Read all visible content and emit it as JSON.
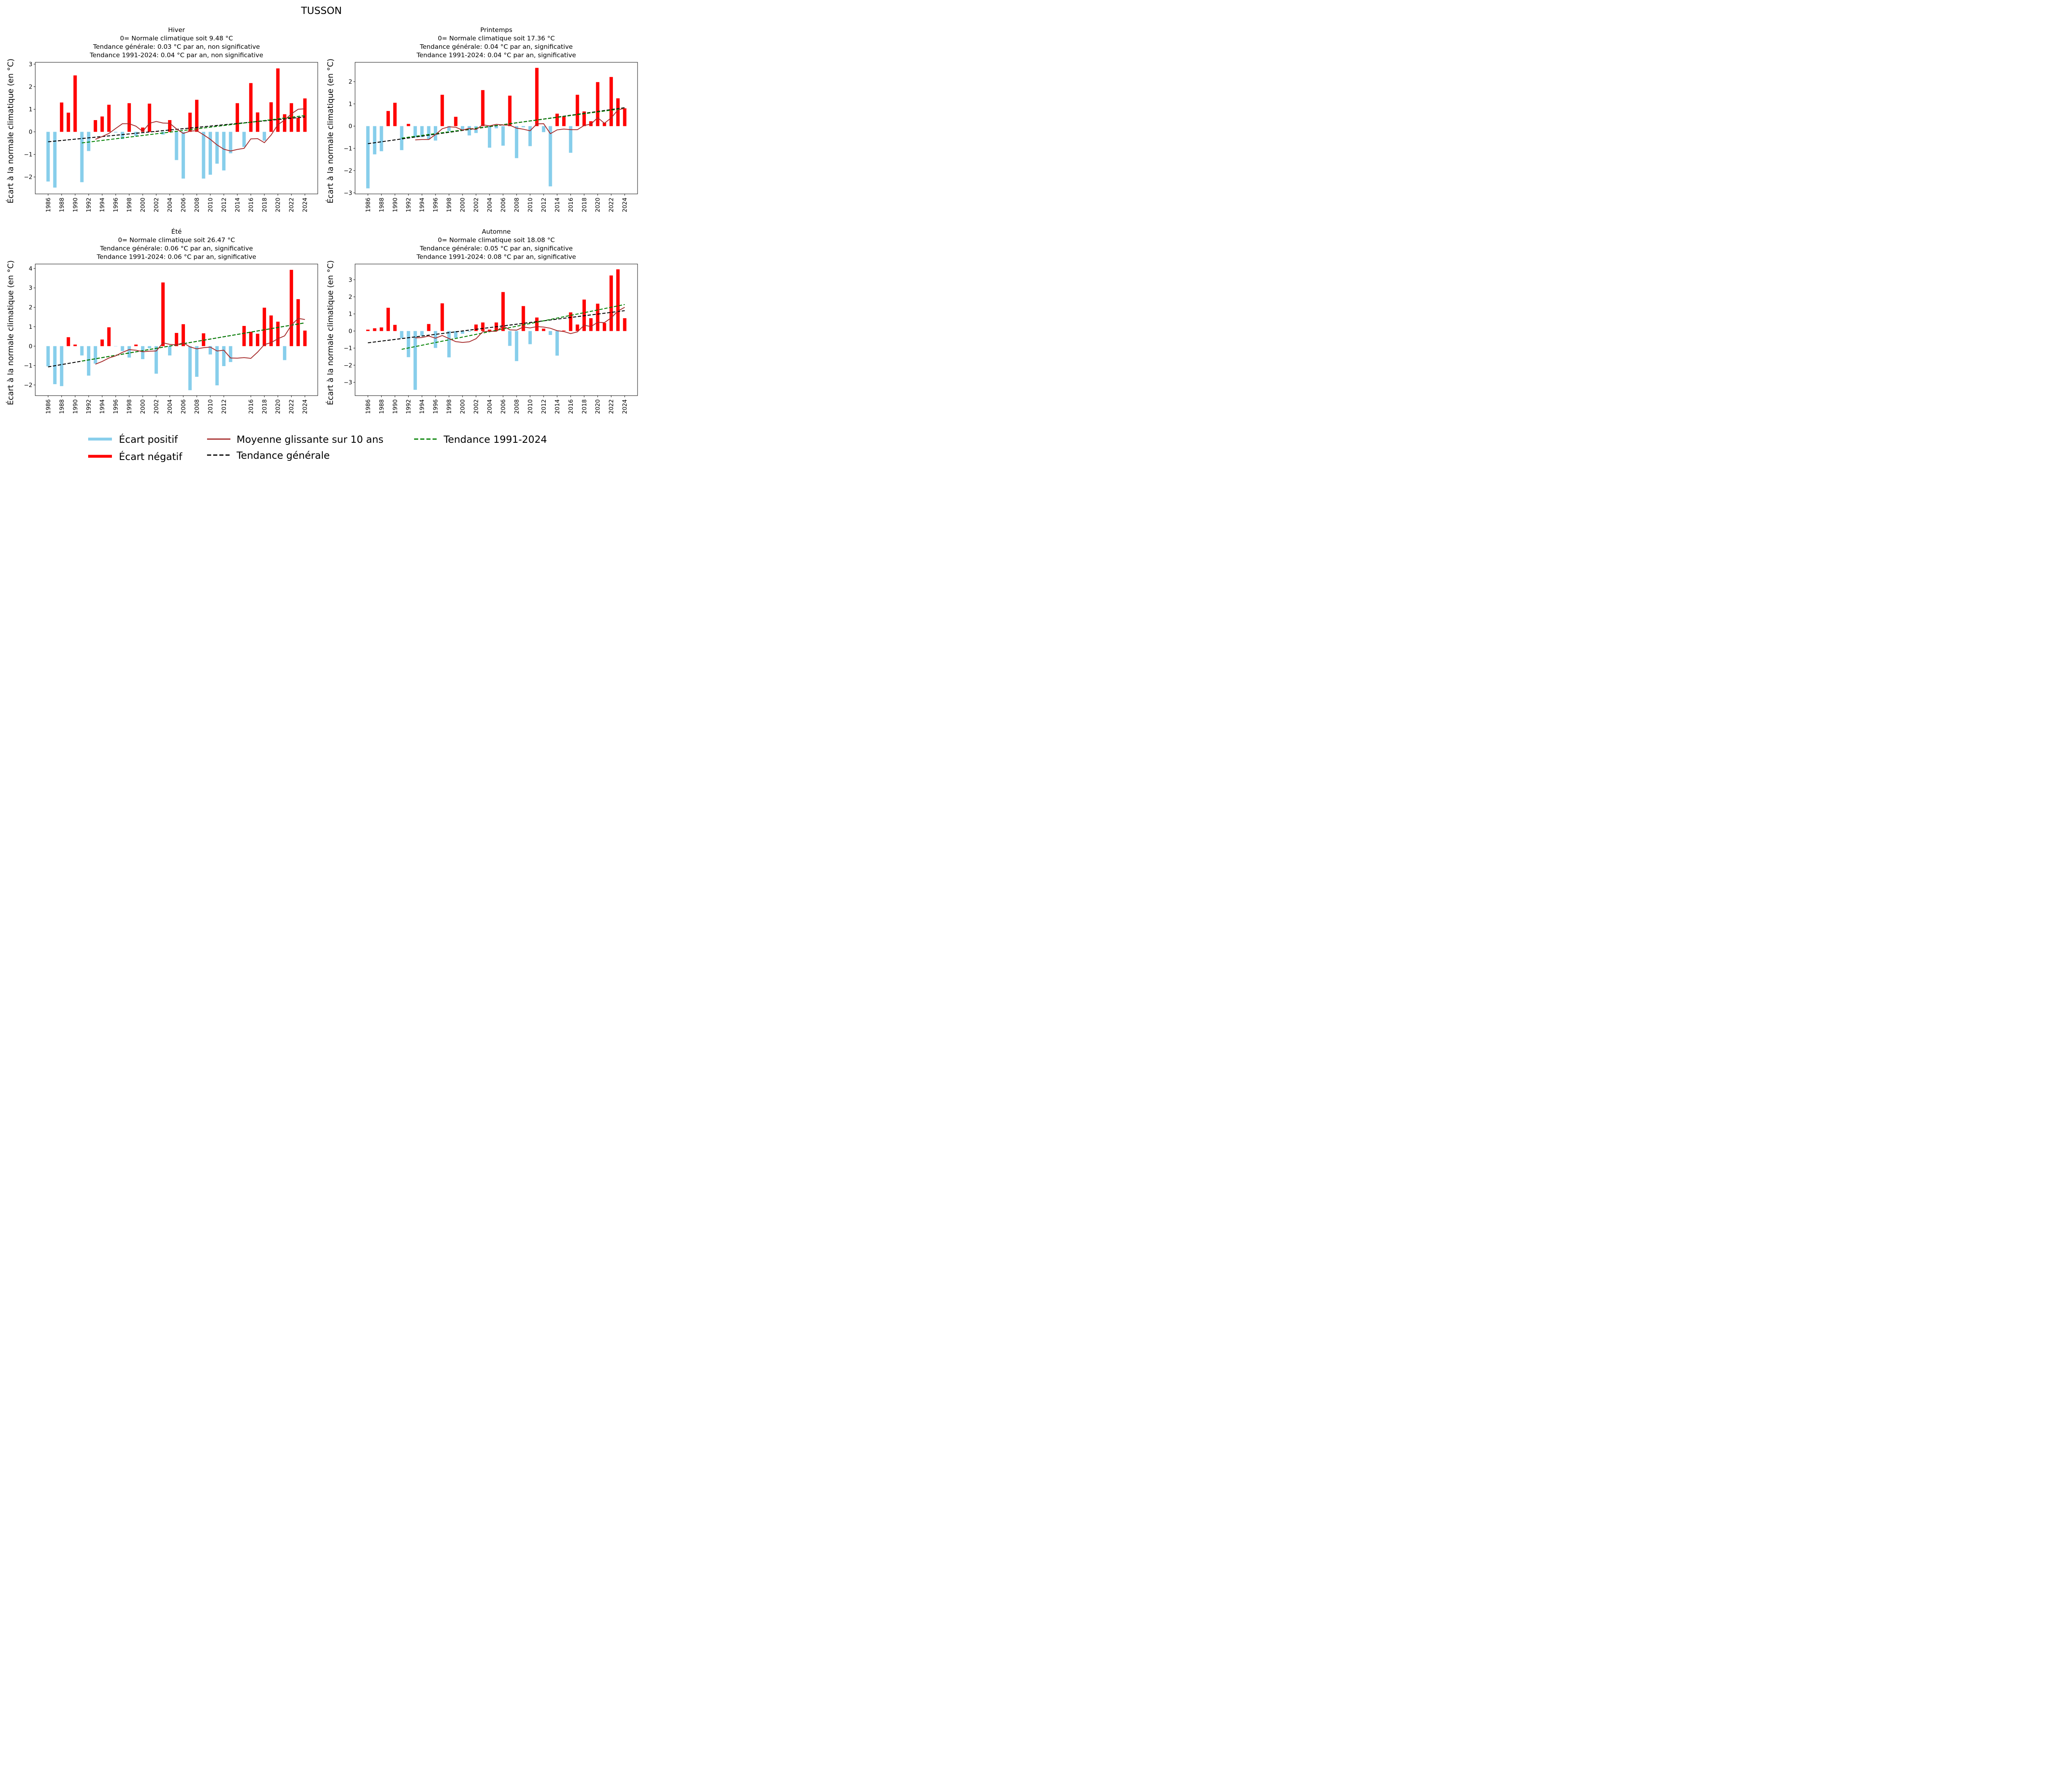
{
  "figure": {
    "title": "TUSSON"
  },
  "legend": {
    "items": [
      {
        "label": "Écart positif",
        "color": "#87ceeb",
        "style": "bar"
      },
      {
        "label": "Écart négatif",
        "color": "#ff0000",
        "style": "bar"
      },
      {
        "label": "Moyenne glissante sur 10 ans",
        "color": "#a52a2a",
        "style": "solid"
      },
      {
        "label": "Tendance générale",
        "color": "#000000",
        "style": "dashed"
      },
      {
        "label": "Tendance 1991-2024",
        "color": "#008000",
        "style": "dashed"
      }
    ]
  },
  "chart_data": [
    {
      "type": "bar",
      "panel": "top-left",
      "title_lines": [
        "Hiver",
        "0= Normale climatique soit 9.48 °C",
        "Tendance générale: 0.03  °C par an, non significative",
        "Tendance 1991-2024: 0.04 °C par an, non significative"
      ],
      "ylabel": "Écart à la normale climatique (en °C)",
      "ylim": [
        -2.75,
        3.08
      ],
      "yticks": [
        -2,
        -1,
        0,
        1,
        2,
        3
      ],
      "xticks": [
        1986,
        1988,
        1990,
        1992,
        1994,
        1996,
        1998,
        2000,
        2002,
        2004,
        2006,
        2008,
        2010,
        2012,
        2014,
        2016,
        2018,
        2020,
        2022,
        2024
      ],
      "years": [
        1986,
        1987,
        1988,
        1989,
        1990,
        1991,
        1992,
        1993,
        1994,
        1995,
        1996,
        1997,
        1998,
        1999,
        2000,
        2001,
        2002,
        2003,
        2004,
        2005,
        2006,
        2007,
        2008,
        2009,
        2010,
        2011,
        2012,
        2013,
        2014,
        2015,
        2016,
        2017,
        2018,
        2019,
        2020,
        2021,
        2022,
        2023,
        2024
      ],
      "values": [
        -2.2,
        -2.47,
        1.3,
        0.85,
        2.5,
        -2.23,
        -0.85,
        0.52,
        0.68,
        1.2,
        -0.03,
        -0.32,
        1.27,
        -0.18,
        0.19,
        1.25,
        0.01,
        -0.12,
        0.52,
        -1.25,
        -2.07,
        0.85,
        1.42,
        -2.07,
        -1.9,
        -1.41,
        -1.71,
        -0.95,
        1.27,
        -0.67,
        2.16,
        0.86,
        -0.39,
        1.31,
        2.81,
        0.78,
        1.27,
        0.62,
        1.48
      ],
      "moving_avg": {
        "years": [
          1993,
          1994,
          1995,
          1996,
          1997,
          1998,
          1999,
          2000,
          2001,
          2002,
          2003,
          2004,
          2005,
          2006,
          2007,
          2008,
          2009,
          2010,
          2011,
          2012,
          2013,
          2014,
          2015,
          2016,
          2017,
          2018,
          2019,
          2020,
          2021,
          2022,
          2023,
          2024
        ],
        "values": [
          -0.33,
          -0.21,
          -0.07,
          0.15,
          0.36,
          0.36,
          0.25,
          0.02,
          0.38,
          0.46,
          0.39,
          0.38,
          0.13,
          -0.07,
          0.03,
          0.05,
          -0.13,
          -0.33,
          -0.58,
          -0.77,
          -0.85,
          -0.78,
          -0.73,
          -0.31,
          -0.3,
          -0.48,
          -0.14,
          0.32,
          0.52,
          0.8,
          1.0,
          1.02
        ]
      },
      "trend_general": {
        "x": [
          1986,
          2024
        ],
        "y": [
          -0.44,
          0.66
        ]
      },
      "trend_1991_2024": {
        "x": [
          1991,
          2024
        ],
        "y": [
          -0.49,
          0.72
        ]
      }
    },
    {
      "type": "bar",
      "panel": "top-right",
      "title_lines": [
        "Printemps",
        "0= Normale climatique soit 17.36 °C",
        "Tendance générale: 0.04  °C par an, significative",
        "Tendance 1991-2024: 0.04 °C par an, significative"
      ],
      "ylabel": "Écart à la normale climatique (en °C)",
      "ylim": [
        -3.05,
        2.87
      ],
      "yticks": [
        -3,
        -2,
        -1,
        0,
        1,
        2
      ],
      "xticks": [
        1986,
        1988,
        1990,
        1992,
        1994,
        1996,
        1998,
        2000,
        2002,
        2004,
        2006,
        2008,
        2010,
        2012,
        2014,
        2016,
        2018,
        2020,
        2022,
        2024
      ],
      "years": [
        1986,
        1987,
        1988,
        1989,
        1990,
        1991,
        1992,
        1993,
        1994,
        1995,
        1996,
        1997,
        1998,
        1999,
        2000,
        2001,
        2002,
        2003,
        2004,
        2005,
        2006,
        2007,
        2008,
        2009,
        2010,
        2011,
        2012,
        2013,
        2014,
        2015,
        2016,
        2017,
        2018,
        2019,
        2020,
        2021,
        2022,
        2023,
        2024
      ],
      "values": [
        -2.8,
        -1.27,
        -1.13,
        0.68,
        1.05,
        -1.08,
        0.1,
        -0.5,
        -0.5,
        -0.6,
        -0.65,
        1.41,
        -0.22,
        0.42,
        -0.2,
        -0.42,
        -0.31,
        1.62,
        -0.97,
        -0.1,
        -0.88,
        1.37,
        -1.44,
        -0.05,
        -0.9,
        2.62,
        -0.27,
        -2.71,
        0.56,
        0.45,
        -1.2,
        1.41,
        0.66,
        0.22,
        1.98,
        0.15,
        2.21,
        1.25,
        0.8
      ],
      "moving_avg": {
        "years": [
          1993,
          1994,
          1995,
          1996,
          1997,
          1998,
          1999,
          2000,
          2001,
          2002,
          2003,
          2004,
          2005,
          2006,
          2007,
          2008,
          2009,
          2010,
          2011,
          2012,
          2013,
          2014,
          2015,
          2016,
          2017,
          2018,
          2019,
          2020,
          2021,
          2022,
          2023,
          2024
        ],
        "values": [
          -0.62,
          -0.6,
          -0.6,
          -0.38,
          -0.12,
          -0.03,
          -0.05,
          -0.18,
          -0.1,
          -0.15,
          0.06,
          0.01,
          0.08,
          0.05,
          0.04,
          -0.09,
          -0.14,
          -0.21,
          0.1,
          0.11,
          -0.34,
          -0.17,
          -0.13,
          -0.16,
          -0.16,
          0.03,
          0.09,
          0.38,
          0.13,
          0.37,
          0.73,
          0.8
        ]
      },
      "trend_general": {
        "x": [
          1986,
          2024
        ],
        "y": [
          -0.79,
          0.83
        ]
      },
      "trend_1991_2024": {
        "x": [
          1991,
          2024
        ],
        "y": [
          -0.54,
          0.8
        ]
      }
    },
    {
      "type": "bar",
      "panel": "bottom-left",
      "title_lines": [
        "Été",
        "0= Normale climatique soit 26.47 °C",
        "Tendance générale: 0.06  °C par an, significative",
        "Tendance 1991-2024: 0.06 °C par an, significative"
      ],
      "ylabel": "Écart à la normale climatique (en °C)",
      "ylim": [
        -2.55,
        4.23
      ],
      "yticks": [
        -2,
        -1,
        0,
        1,
        2,
        3,
        4
      ],
      "xticks": [
        1986,
        1988,
        1990,
        1992,
        1994,
        1996,
        1998,
        2000,
        2002,
        2004,
        2006,
        2008,
        2010,
        2012,
        2016,
        2018,
        2020,
        2022,
        2024
      ],
      "years": [
        1986,
        1987,
        1988,
        1989,
        1990,
        1991,
        1992,
        1993,
        1994,
        1995,
        1996,
        1997,
        1998,
        1999,
        2000,
        2001,
        2002,
        2003,
        2004,
        2005,
        2006,
        2007,
        2008,
        2009,
        2010,
        2011,
        2012,
        2013,
        2015,
        2016,
        2017,
        2018,
        2019,
        2020,
        2021,
        2022,
        2023,
        2024
      ],
      "values": [
        -1.04,
        -1.96,
        -2.06,
        0.46,
        0.08,
        -0.48,
        -1.52,
        -0.9,
        0.34,
        0.97,
        -0.01,
        -0.25,
        -0.59,
        0.08,
        -0.67,
        -0.11,
        -1.42,
        3.28,
        -0.48,
        0.68,
        1.13,
        -2.27,
        -1.58,
        0.66,
        -0.43,
        -2.02,
        -1.03,
        -0.82,
        1.04,
        0.74,
        0.64,
        1.98,
        1.58,
        1.26,
        -0.72,
        3.93,
        2.42,
        0.8
      ],
      "moving_avg": {
        "years": [
          1993,
          1994,
          1995,
          1996,
          1997,
          1998,
          1999,
          2000,
          2001,
          2002,
          2003,
          2004,
          2005,
          2006,
          2007,
          2008,
          2009,
          2010,
          2011,
          2012,
          2013,
          2014,
          2015,
          2016,
          2017,
          2018,
          2019,
          2020,
          2021,
          2022,
          2023,
          2024
        ],
        "values": [
          -0.93,
          -0.79,
          -0.61,
          -0.5,
          -0.32,
          -0.18,
          -0.21,
          -0.29,
          -0.26,
          -0.25,
          0.17,
          0.09,
          0.07,
          0.17,
          -0.04,
          -0.14,
          -0.08,
          -0.05,
          -0.25,
          -0.21,
          -0.61,
          -0.62,
          -0.59,
          -0.63,
          -0.31,
          0.08,
          0.18,
          0.38,
          0.53,
          1.08,
          1.43,
          1.37
        ]
      },
      "trend_general": {
        "x": [
          1986,
          2024
        ],
        "y": [
          -1.07,
          1.2
        ]
      },
      "trend_1991_2024": {
        "x": [
          1991,
          2024
        ],
        "y": [
          -0.77,
          1.2
        ]
      }
    },
    {
      "type": "bar",
      "panel": "bottom-right",
      "title_lines": [
        "Automne",
        "0= Normale climatique soit 18.08 °C",
        "Tendance générale: 0.05  °C par an, significative",
        "Tendance 1991-2024: 0.08 °C par an, significative"
      ],
      "ylabel": "Écart à la normale climatique (en °C)",
      "ylim": [
        -3.78,
        3.92
      ],
      "yticks": [
        -3,
        -2,
        -1,
        0,
        1,
        2,
        3
      ],
      "xticks": [
        1986,
        1988,
        1990,
        1992,
        1994,
        1996,
        1998,
        2000,
        2002,
        2004,
        2006,
        2008,
        2010,
        2012,
        2014,
        2016,
        2018,
        2020,
        2022,
        2024
      ],
      "years": [
        1986,
        1987,
        1988,
        1989,
        1990,
        1991,
        1992,
        1993,
        1994,
        1995,
        1996,
        1997,
        1998,
        1999,
        2000,
        2001,
        2002,
        2003,
        2004,
        2005,
        2006,
        2007,
        2008,
        2009,
        2010,
        2011,
        2012,
        2013,
        2014,
        2015,
        2016,
        2017,
        2018,
        2019,
        2020,
        2021,
        2022,
        2023,
        2024
      ],
      "values": [
        0.08,
        0.16,
        0.21,
        1.36,
        0.36,
        -0.42,
        -1.53,
        -3.44,
        -0.27,
        0.41,
        -0.99,
        1.62,
        -1.54,
        -0.4,
        -0.16,
        -0.04,
        0.38,
        0.5,
        0.08,
        0.5,
        2.28,
        -0.87,
        -1.76,
        1.46,
        -0.77,
        0.79,
        0.14,
        -0.23,
        -1.44,
        0.03,
        1.09,
        0.38,
        1.84,
        0.75,
        1.6,
        0.47,
        3.25,
        3.61,
        0.75
      ],
      "moving_avg": {
        "years": [
          1993,
          1994,
          1995,
          1996,
          1997,
          1998,
          1999,
          2000,
          2001,
          2002,
          2003,
          2004,
          2005,
          2006,
          2007,
          2008,
          2009,
          2010,
          2011,
          2012,
          2013,
          2014,
          2015,
          2016,
          2017,
          2018,
          2019,
          2020,
          2021,
          2022,
          2023,
          2024
        ],
        "values": [
          -0.4,
          -0.38,
          -0.29,
          -0.42,
          -0.26,
          -0.44,
          -0.62,
          -0.67,
          -0.63,
          -0.45,
          -0.04,
          -0.01,
          -0.02,
          0.3,
          0.07,
          0.05,
          0.23,
          0.18,
          0.26,
          0.23,
          0.16,
          0.02,
          -0.03,
          -0.15,
          -0.05,
          0.34,
          0.26,
          0.51,
          0.49,
          0.77,
          1.17,
          1.39
        ]
      },
      "trend_general": {
        "x": [
          1986,
          2024
        ],
        "y": [
          -0.69,
          1.19
        ]
      },
      "trend_1991_2024": {
        "x": [
          1991,
          2024
        ],
        "y": [
          -1.07,
          1.55
        ]
      }
    }
  ]
}
